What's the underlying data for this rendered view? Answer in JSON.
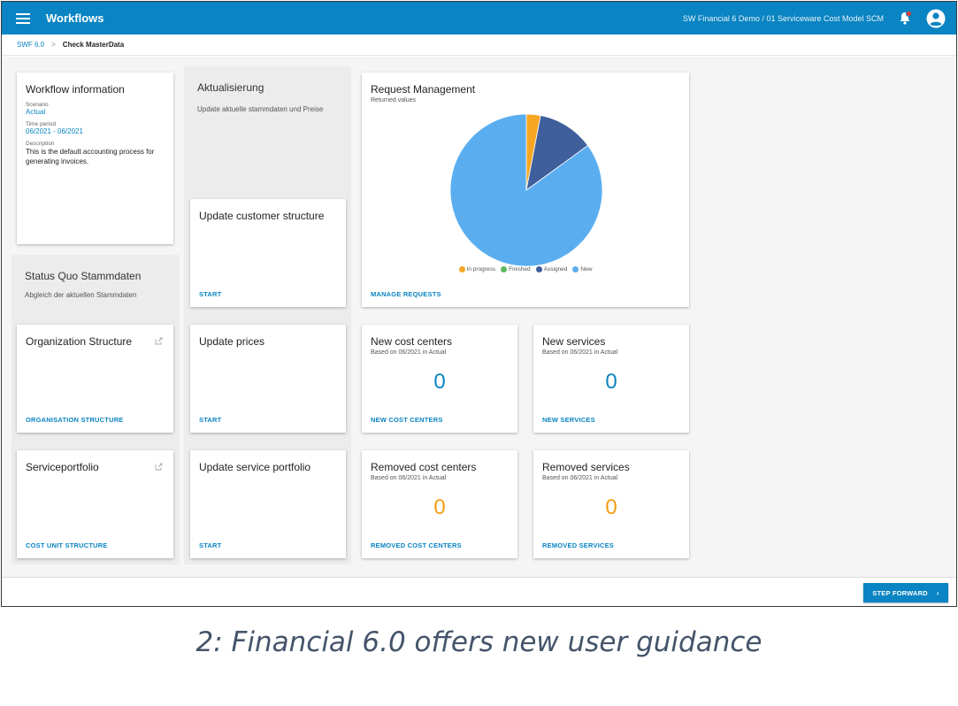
{
  "app": {
    "title": "Workflows",
    "context": "SW Financial 6 Demo  /  01 Serviceware Cost Model SCM"
  },
  "breadcrumb": {
    "items": [
      "SWF 6.0",
      "Check MasterData"
    ],
    "separator": ">"
  },
  "workflow_info": {
    "title": "Workflow information",
    "scenario_label": "Scenario",
    "scenario_value": "Actual",
    "time_label": "Time period",
    "time_value": "06/2021 - 06/2021",
    "description_label": "Description",
    "description_value": "This is the default accounting process for generating invoices."
  },
  "status_quo": {
    "title": "Status Quo Stammdaten",
    "description": "Abgleich der aktuellen Stammdaten",
    "cards": [
      {
        "title": "Organization Structure",
        "action": "ORGANISATION STRUCTURE"
      },
      {
        "title": "Serviceportfolio",
        "action": "COST UNIT STRUCTURE"
      }
    ]
  },
  "aktualisierung": {
    "title": "Aktualisierung",
    "description": "Update aktuelle stammdaten und Preise",
    "cards": [
      {
        "title": "Update customer structure",
        "action": "START"
      },
      {
        "title": "Update prices",
        "action": "START"
      },
      {
        "title": "Update service portfolio",
        "action": "START"
      }
    ]
  },
  "request_management": {
    "title": "Request Management",
    "subtitle": "Returned values",
    "action": "MANAGE REQUESTS"
  },
  "chart_data": {
    "type": "pie",
    "title": "",
    "labels": [
      "In progress",
      "Finished",
      "Assigned",
      "New"
    ],
    "values": [
      3,
      0,
      12,
      85
    ],
    "colors": [
      "#f5a623",
      "#5cb85c",
      "#3f5f9c",
      "#5aaef0"
    ]
  },
  "metrics": [
    {
      "title": "New cost centers",
      "subtitle": "Based on 06/2021 in Actual",
      "value": "0",
      "action": "NEW COST CENTERS",
      "tone": "blue"
    },
    {
      "title": "New services",
      "subtitle": "Based on 06/2021 in Actual",
      "value": "0",
      "action": "NEW SERVICES",
      "tone": "blue"
    },
    {
      "title": "Removed cost centers",
      "subtitle": "Based on 06/2021 in Actual",
      "value": "0",
      "action": "REMOVED COST CENTERS",
      "tone": "orange"
    },
    {
      "title": "Removed services",
      "subtitle": "Based on 06/2021 in Actual",
      "value": "0",
      "action": "REMOVED SERVICES",
      "tone": "orange"
    }
  ],
  "footer": {
    "step_forward": "STEP FORWARD"
  },
  "caption": "2: Financial 6.0 offers new user guidance",
  "colors": {
    "primary": "#0a84c2",
    "accent_orange": "#f39c12",
    "group_bg": "#ececec"
  }
}
